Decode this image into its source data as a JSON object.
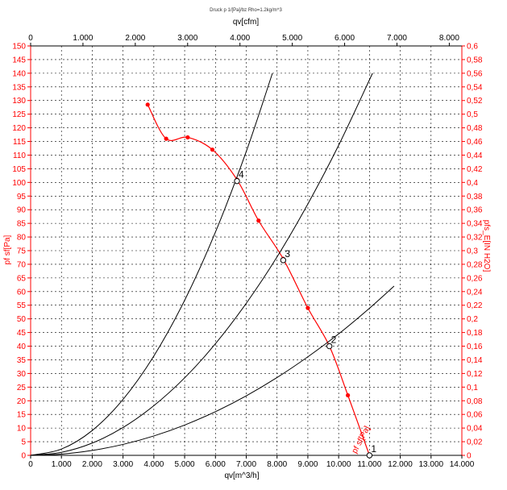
{
  "chart_data": {
    "type": "line",
    "title": "Druck p 1/[Pa]/bz Rho=1.2kg/m^3",
    "xlabel_bottom": "qv[m^3/h]",
    "xlabel_top": "qv[cfm]",
    "ylabel_left": "pf sf[Pa]",
    "ylabel_right": "pfs_E[IN H2O]",
    "x_bottom_ticks": [
      "0",
      "1.000",
      "2.000",
      "3.000",
      "4.000",
      "5.000",
      "6.000",
      "7.000",
      "8.000",
      "9.000",
      "10.000",
      "11.000",
      "12.000",
      "13.000",
      "14.000"
    ],
    "x_top_ticks": [
      "0",
      "1.000",
      "2.000",
      "3.000",
      "4.000",
      "5.000",
      "6.000",
      "7.000",
      "8.000"
    ],
    "y_left_ticks": [
      "0",
      "5",
      "10",
      "15",
      "20",
      "25",
      "30",
      "35",
      "40",
      "45",
      "50",
      "55",
      "60",
      "65",
      "70",
      "75",
      "80",
      "85",
      "90",
      "95",
      "100",
      "105",
      "110",
      "115",
      "120",
      "125",
      "130",
      "135",
      "140",
      "145",
      "150"
    ],
    "y_right_ticks": [
      "0",
      "0,02",
      "0,04",
      "0,06",
      "0,08",
      "0,1",
      "0,12",
      "0,14",
      "0,16",
      "0,18",
      "0,2",
      "0,22",
      "0,24",
      "0,26",
      "0,28",
      "0,3",
      "0,32",
      "0,34",
      "0,36",
      "0,38",
      "0,4",
      "0,42",
      "0,44",
      "0,46",
      "0,48",
      "0,5",
      "0,52",
      "0,54",
      "0,56",
      "0,58",
      "0,6"
    ],
    "xlim": [
      0,
      14000
    ],
    "ylim": [
      0,
      150
    ],
    "grid": true,
    "fan_curve_label": "pf sf[Pa]",
    "series": [
      {
        "x": [
          3800,
          4400,
          5100,
          5900,
          6700,
          7400,
          8200,
          9000,
          9700,
          10300,
          11000
        ],
        "y": [
          128.5,
          116,
          116.5,
          112,
          101,
          86,
          72,
          54,
          40,
          22,
          0
        ],
        "color": "#ff0000"
      },
      {
        "x": [
          0,
          1000,
          2000,
          3000,
          4000,
          5000,
          6000,
          7000,
          7850
        ],
        "y": [
          0,
          2.3,
          9.1,
          20.5,
          36.4,
          56.8,
          81.8,
          111.3,
          140
        ],
        "color": "#000000"
      },
      {
        "x": [
          0,
          1000,
          2000,
          3000,
          4000,
          5000,
          6000,
          7000,
          8000,
          9000,
          10000,
          11100
        ],
        "y": [
          0,
          1.1,
          4.5,
          10.2,
          18.2,
          28.4,
          40.9,
          55.7,
          72.7,
          92.1,
          113.6,
          140
        ],
        "color": "#000000"
      },
      {
        "x": [
          0,
          1000,
          2000,
          3000,
          4000,
          5000,
          6000,
          7000,
          8000,
          9000,
          10000,
          11000,
          11800
        ],
        "y": [
          0,
          0.45,
          1.8,
          4,
          7.1,
          11.1,
          16,
          21.8,
          28.5,
          36.1,
          44.5,
          53.9,
          62
        ],
        "color": "#000000"
      }
    ],
    "operating_points": [
      {
        "label": "1",
        "x": 11000,
        "y": 0
      },
      {
        "label": "2",
        "x": 9700,
        "y": 40
      },
      {
        "label": "3",
        "x": 8200,
        "y": 71.5
      },
      {
        "label": "4",
        "x": 6700,
        "y": 100.5
      }
    ]
  }
}
